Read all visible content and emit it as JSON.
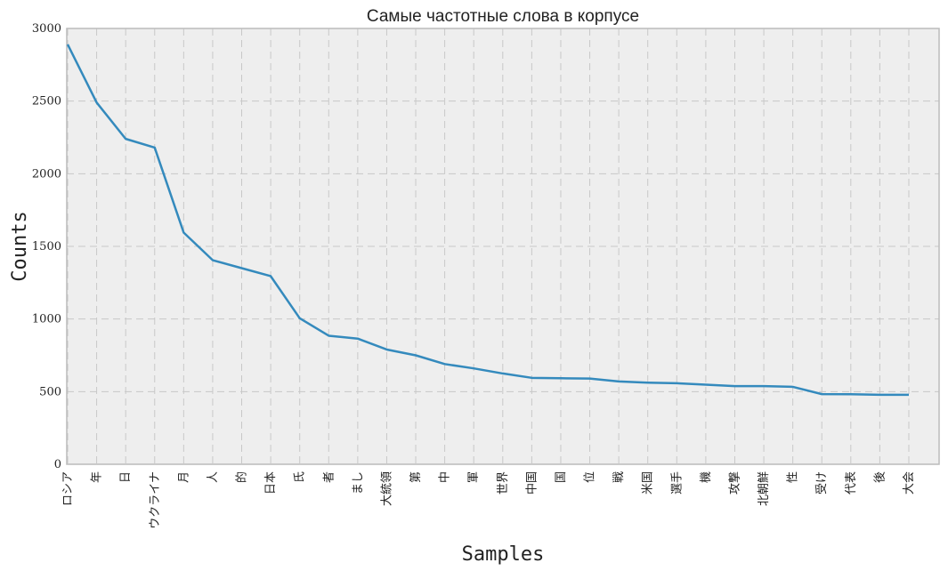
{
  "chart_data": {
    "type": "line",
    "title": "Самые частотные слова в корпусе",
    "xlabel": "Samples",
    "ylabel": "Counts",
    "ylim": [
      0,
      3000
    ],
    "yticks": [
      0,
      500,
      1000,
      1500,
      2000,
      2500,
      3000
    ],
    "grid": true,
    "categories": [
      "ロシア",
      "年",
      "日",
      "ウクライナ",
      "月",
      "人",
      "的",
      "日本",
      "氏",
      "者",
      "まし",
      "大統領",
      "第",
      "中",
      "軍",
      "世界",
      "中国",
      "国",
      "位",
      "戦",
      "米国",
      "選手",
      "機",
      "攻撃",
      "北朝鮮",
      "性",
      "受け",
      "代表",
      "後",
      "大会"
    ],
    "values": [
      2890,
      2490,
      2240,
      2180,
      1595,
      1405,
      1350,
      1295,
      1005,
      885,
      865,
      790,
      750,
      690,
      660,
      625,
      595,
      592,
      590,
      570,
      562,
      558,
      548,
      538,
      538,
      533,
      483,
      482,
      478,
      478
    ],
    "colors": {
      "line": "#348abd",
      "axes_bg": "#eeeeee",
      "grid": "#c8c8c8",
      "frame": "#bcbcbc"
    }
  }
}
